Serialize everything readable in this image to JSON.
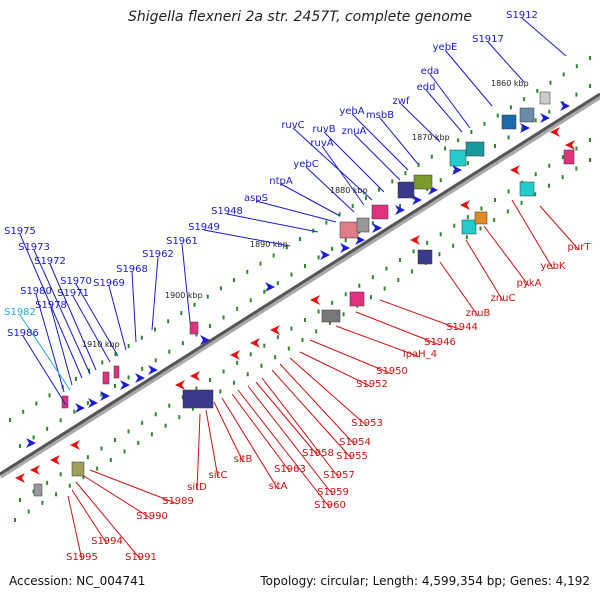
{
  "title": "Shigella flexneri 2a str. 2457T, complete genome",
  "accession": "Accession: NC_004741",
  "summary": "Topology: circular; Length: 4,599,354 bp; Genes: 4,192",
  "colors": {
    "forward_label": "#1a1acc",
    "reverse_label": "#cc1111",
    "highlight_label": "#22aadd",
    "backbone": "#777777",
    "tick": "#2a8a2a"
  },
  "kbp_marks": [
    "1860 kbp",
    "1870 kbp",
    "1880 kbp",
    "1890 kbp",
    "1900 kbp",
    "1910 kbp"
  ],
  "forward_genes": [
    "S1912",
    "S1917",
    "yebE",
    "eda",
    "edd",
    "zwf",
    "msbB",
    "yebA",
    "znuA",
    "ruvB",
    "ruvC",
    "ruvA",
    "yebC",
    "ntpA",
    "aspS",
    "S1948",
    "S1949",
    "S1961",
    "S1962",
    "S1968",
    "S1969",
    "S1970",
    "S1971",
    "S1972",
    "S1973",
    "S1975",
    "S1978",
    "S1980",
    "S1982",
    "S1986"
  ],
  "reverse_genes": [
    "purT",
    "yebK",
    "pykA",
    "znuC",
    "znuB",
    "S1944",
    "S1946",
    "ipaH_4",
    "S1950",
    "S1952",
    "S1953",
    "S1954",
    "S1955",
    "S1957",
    "S1958",
    "S1959",
    "S1960",
    "S1963",
    "sitA",
    "sitB",
    "sitC",
    "sitD",
    "S1989",
    "S1990",
    "S1991",
    "S1994",
    "S1995"
  ]
}
